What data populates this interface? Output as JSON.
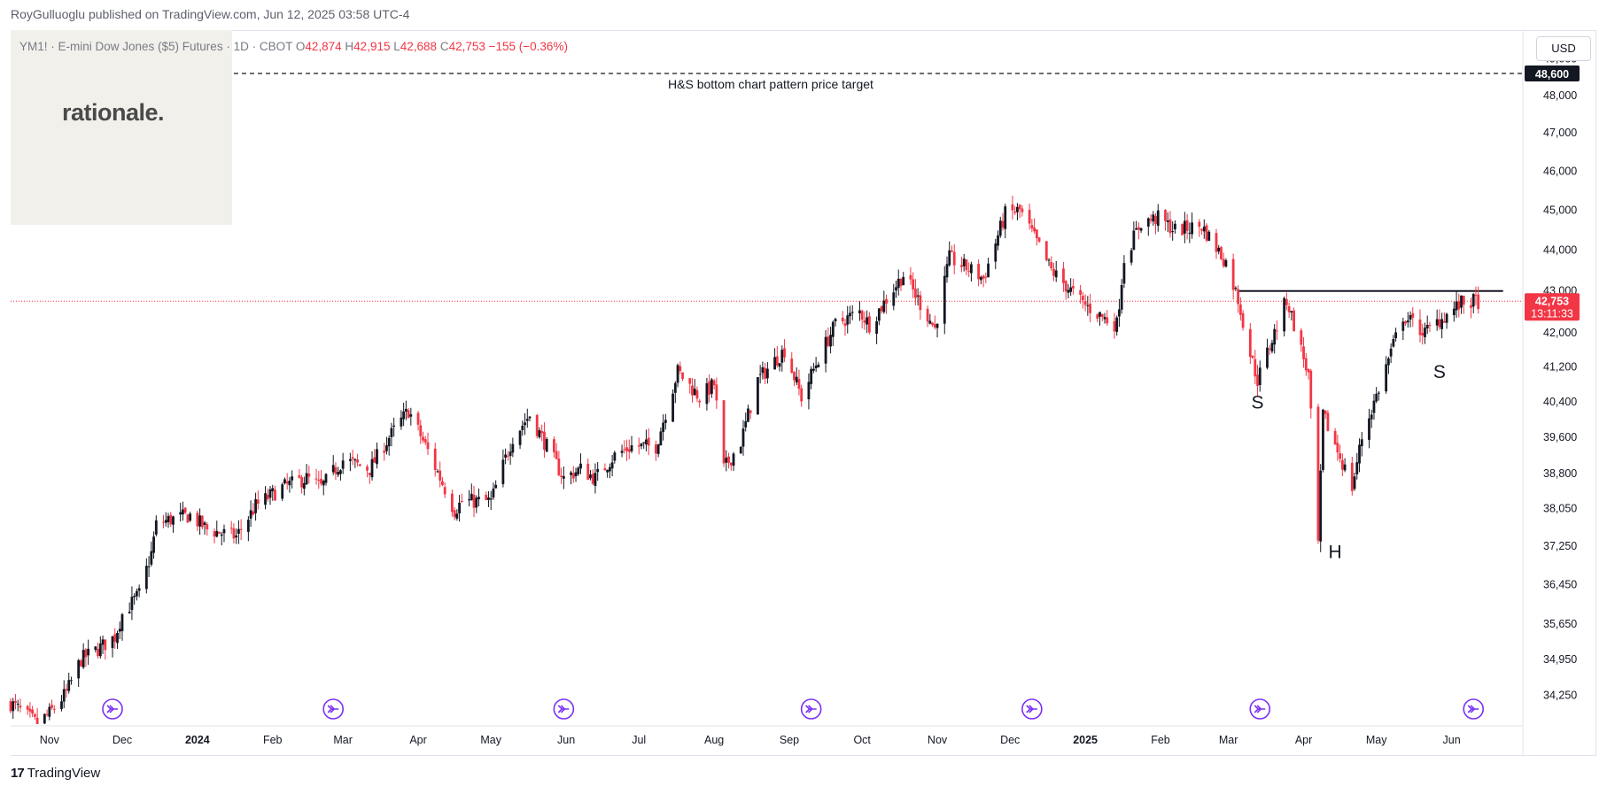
{
  "header": {
    "publisher": "RoyGulluoglu published on TradingView.com, Jun 12, 2025 03:58 UTC-4",
    "logo_text": "rationale.",
    "currency": "USD",
    "brand": "TradingView",
    "brand_mark": "17"
  },
  "legend": {
    "symbol": "YM1! · E-mini Dow Jones ($5) Futures · 1D · CBOT",
    "open_label": "O",
    "open": "42,874",
    "high_label": "H",
    "high": "42,915",
    "low_label": "L",
    "low": "42,688",
    "close_label": "C",
    "close": "42,753",
    "change": "−155 (−0.36%)"
  },
  "colors": {
    "up": "#089981",
    "down": "#f23645",
    "candle_up_shown": "#131722",
    "accent": "#2962ff",
    "event": "#7b2ff7"
  },
  "chart_data": {
    "type": "candlestick",
    "title": "",
    "y_axis": {
      "tick_labels": [
        "49,000",
        "48,000",
        "47,000",
        "46,000",
        "45,000",
        "44,000",
        "43,000",
        "42,000",
        "41,200",
        "40,400",
        "39,600",
        "38,800",
        "38,050",
        "37,250",
        "36,450",
        "35,650",
        "34,950",
        "34,250"
      ],
      "scale": "log",
      "range": [
        33700,
        49800
      ]
    },
    "x_axis": {
      "tick_labels": [
        "Nov",
        "Dec",
        "2024",
        "Feb",
        "Mar",
        "Apr",
        "May",
        "Jun",
        "Jul",
        "Aug",
        "Sep",
        "Oct",
        "Nov",
        "Dec",
        "2025",
        "Feb",
        "Mar",
        "Apr",
        "May",
        "Jun"
      ],
      "bold_ticks": [
        "2024",
        "2025"
      ],
      "range": [
        "2023-10-16",
        "2025-06-30"
      ]
    },
    "last_price": {
      "value": 42753,
      "label": "42,753",
      "countdown": "13:11:33"
    },
    "target": {
      "value": 48600,
      "label": "48,600",
      "text": "H&S bottom chart pattern price target"
    },
    "neckline": {
      "value": 43000,
      "from": "2025-03-05",
      "to": "2025-06-12"
    },
    "pattern_labels": [
      {
        "text": "S",
        "date": "2025-03-13",
        "price": 40250
      },
      {
        "text": "H",
        "date": "2025-04-14",
        "price": 37000
      },
      {
        "text": "S",
        "date": "2025-05-27",
        "price": 40950
      }
    ],
    "price_path": [
      {
        "date": "2023-10-16",
        "close": 34100
      },
      {
        "date": "2023-10-27",
        "close": 33700
      },
      {
        "date": "2023-11-01",
        "close": 33900
      },
      {
        "date": "2023-11-08",
        "close": 34300
      },
      {
        "date": "2023-11-14",
        "close": 34950
      },
      {
        "date": "2023-11-21",
        "close": 35150
      },
      {
        "date": "2023-11-28",
        "close": 35400
      },
      {
        "date": "2023-12-01",
        "close": 35850
      },
      {
        "date": "2023-12-08",
        "close": 36250
      },
      {
        "date": "2023-12-13",
        "close": 37100
      },
      {
        "date": "2023-12-15",
        "close": 37700
      },
      {
        "date": "2023-12-20",
        "close": 37800
      },
      {
        "date": "2023-12-29",
        "close": 37900
      },
      {
        "date": "2024-01-05",
        "close": 37600
      },
      {
        "date": "2024-01-17",
        "close": 37450
      },
      {
        "date": "2024-01-25",
        "close": 38100
      },
      {
        "date": "2024-02-05",
        "close": 38500
      },
      {
        "date": "2024-02-15",
        "close": 38700
      },
      {
        "date": "2024-02-21",
        "close": 38500
      },
      {
        "date": "2024-03-01",
        "close": 39100
      },
      {
        "date": "2024-03-12",
        "close": 38900
      },
      {
        "date": "2024-03-20",
        "close": 39600
      },
      {
        "date": "2024-03-28",
        "close": 40200
      },
      {
        "date": "2024-04-05",
        "close": 39300
      },
      {
        "date": "2024-04-16",
        "close": 38000
      },
      {
        "date": "2024-04-19",
        "close": 38200
      },
      {
        "date": "2024-05-01",
        "close": 38200
      },
      {
        "date": "2024-05-10",
        "close": 39600
      },
      {
        "date": "2024-05-17",
        "close": 40100
      },
      {
        "date": "2024-05-24",
        "close": 39400
      },
      {
        "date": "2024-05-31",
        "close": 38700
      },
      {
        "date": "2024-06-07",
        "close": 38900
      },
      {
        "date": "2024-06-13",
        "close": 38700
      },
      {
        "date": "2024-06-21",
        "close": 39200
      },
      {
        "date": "2024-06-28",
        "close": 39400
      },
      {
        "date": "2024-07-08",
        "close": 39400
      },
      {
        "date": "2024-07-17",
        "close": 41100
      },
      {
        "date": "2024-07-26",
        "close": 40500
      },
      {
        "date": "2024-08-01",
        "close": 40800
      },
      {
        "date": "2024-08-05",
        "close": 38900
      },
      {
        "date": "2024-08-12",
        "close": 39500
      },
      {
        "date": "2024-08-19",
        "close": 40900
      },
      {
        "date": "2024-08-30",
        "close": 41600
      },
      {
        "date": "2024-09-06",
        "close": 40500
      },
      {
        "date": "2024-09-13",
        "close": 41400
      },
      {
        "date": "2024-09-20",
        "close": 42200
      },
      {
        "date": "2024-09-30",
        "close": 42500
      },
      {
        "date": "2024-10-04",
        "close": 42200
      },
      {
        "date": "2024-10-18",
        "close": 43400
      },
      {
        "date": "2024-10-31",
        "close": 42100
      },
      {
        "date": "2024-11-06",
        "close": 43800
      },
      {
        "date": "2024-11-15",
        "close": 43500
      },
      {
        "date": "2024-11-20",
        "close": 43300
      },
      {
        "date": "2024-11-29",
        "close": 44900
      },
      {
        "date": "2024-12-05",
        "close": 45000
      },
      {
        "date": "2024-12-18",
        "close": 43500
      },
      {
        "date": "2024-12-31",
        "close": 42700
      },
      {
        "date": "2025-01-10",
        "close": 42300
      },
      {
        "date": "2025-01-14",
        "close": 42200
      },
      {
        "date": "2025-01-17",
        "close": 43800
      },
      {
        "date": "2025-01-24",
        "close": 44700
      },
      {
        "date": "2025-01-31",
        "close": 44800
      },
      {
        "date": "2025-02-07",
        "close": 44500
      },
      {
        "date": "2025-02-18",
        "close": 44600
      },
      {
        "date": "2025-02-28",
        "close": 43700
      },
      {
        "date": "2025-03-05",
        "close": 42800
      },
      {
        "date": "2025-03-10",
        "close": 41500
      },
      {
        "date": "2025-03-13",
        "close": 40900
      },
      {
        "date": "2025-03-20",
        "close": 42000
      },
      {
        "date": "2025-03-25",
        "close": 42800
      },
      {
        "date": "2025-04-03",
        "close": 41000
      },
      {
        "date": "2025-04-07",
        "close": 37300
      },
      {
        "date": "2025-04-09",
        "close": 40100
      },
      {
        "date": "2025-04-21",
        "close": 38500
      },
      {
        "date": "2025-04-25",
        "close": 39600
      },
      {
        "date": "2025-05-02",
        "close": 40700
      },
      {
        "date": "2025-05-12",
        "close": 42400
      },
      {
        "date": "2025-05-21",
        "close": 42000
      },
      {
        "date": "2025-05-27",
        "close": 42300
      },
      {
        "date": "2025-06-05",
        "close": 42700
      },
      {
        "date": "2025-06-12",
        "close": 42753
      }
    ],
    "event_markers": [
      "2023-11-27",
      "2024-02-26",
      "2024-05-31",
      "2024-09-10",
      "2024-12-10",
      "2025-03-14",
      "2025-06-10"
    ]
  }
}
